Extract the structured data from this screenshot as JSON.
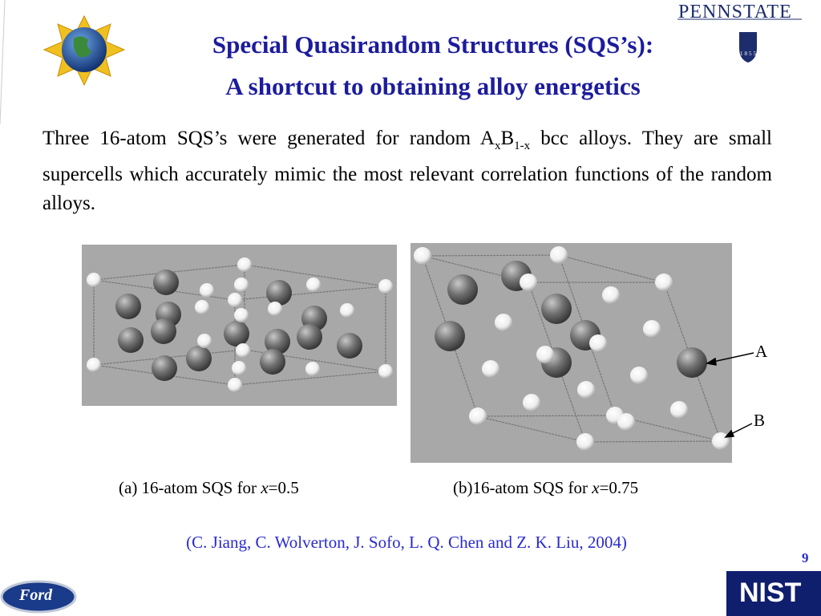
{
  "header": {
    "title_line1": "Special Quasirandom Structures (SQS’s):",
    "title_line2": "A shortcut to obtaining alloy energetics"
  },
  "body": {
    "text_before": "Three 16-atom SQS’s were generated for random A",
    "sub_x": "x",
    "letter_b": "B",
    "sub_1x": "1-x",
    "text_after": " bcc alloys. They are small supercells which accurately mimic the most relevant correlation functions of the random alloys."
  },
  "figures": [
    {
      "caption_prefix": "(a) 16-atom SQS for ",
      "caption_var": "x",
      "caption_suffix": "=0.5"
    },
    {
      "caption_prefix": "(b)16-atom SQS for ",
      "caption_var": "x",
      "caption_suffix": "=0.75"
    }
  ],
  "labels": [
    "A",
    "B"
  ],
  "citation": "(C. Jiang, C. Wolverton, J. Sofo, L. Q. Chen and Z. K. Liu, 2004)",
  "page_number": "9",
  "logos": {
    "pennstate": "PENNSTATE",
    "year": "1855",
    "ford": "Ford",
    "nist": "NIST"
  }
}
